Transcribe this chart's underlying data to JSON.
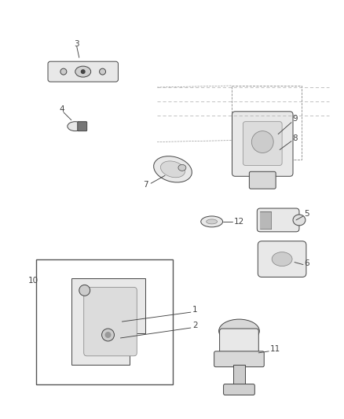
{
  "bg_color": "#ffffff",
  "fig_width": 4.38,
  "fig_height": 5.33,
  "dpi": 100,
  "lw": 0.7,
  "edge_color": "#444444",
  "fill_color": "#e8e8e8",
  "label_fontsize": 7.5
}
